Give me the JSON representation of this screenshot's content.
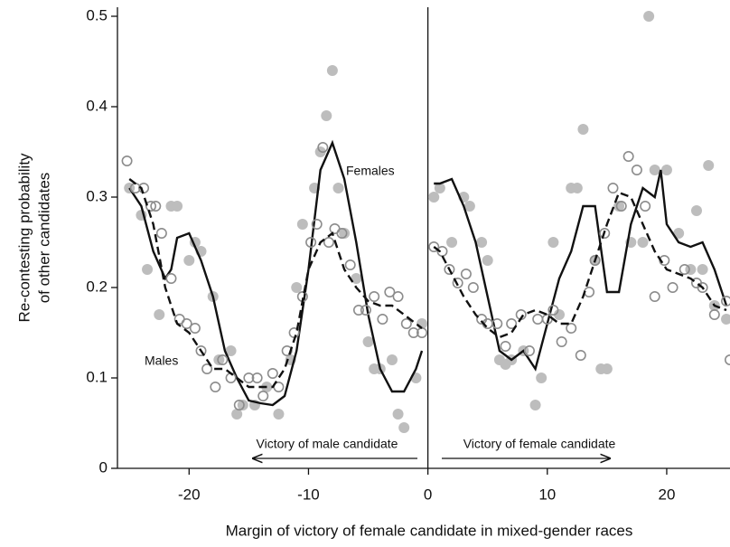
{
  "chart_data": {
    "type": "scatter",
    "xlabel": "Margin of victory of female candidate in mixed-gender races",
    "ylabel": [
      "Re-contesting probability",
      "of other candidates"
    ],
    "annotations": [
      "Victory of male candidate",
      "Victory of female candidate"
    ],
    "xlim": [
      -26,
      25.3
    ],
    "ylim": [
      0,
      0.51
    ],
    "xticks": [
      -20,
      -10,
      0,
      10,
      20
    ],
    "yticks": [
      0,
      0.1,
      0.2,
      0.3,
      0.4,
      0.5
    ],
    "series": [
      {
        "name": "Females",
        "color": "#bdbdbd",
        "marker": "filled",
        "line_style": "solid",
        "x": [
          -25,
          -24,
          -23.5,
          -22.5,
          -21.5,
          -21,
          -20,
          -19.5,
          -19,
          -18,
          -17.5,
          -16.5,
          -16,
          -15.5,
          -14.5,
          -13.5,
          -12.5,
          -11.5,
          -11,
          -10.5,
          -9.5,
          -9,
          -8.5,
          -8,
          -7.5,
          -7,
          -6,
          -5,
          -4.5,
          -4,
          -3,
          -2.5,
          -2,
          -1,
          -0.5,
          0.5,
          1,
          2,
          3,
          3.5,
          4.5,
          5,
          6,
          6.5,
          7,
          8,
          9,
          9.5,
          10.5,
          11,
          12,
          12.5,
          13,
          14,
          14.5,
          15,
          16,
          17,
          18,
          18.5,
          19,
          20,
          21,
          22,
          22.5,
          23,
          23.5,
          24,
          25
        ],
        "values": [
          0.31,
          0.28,
          0.22,
          0.17,
          0.29,
          0.29,
          0.23,
          0.25,
          0.24,
          0.19,
          0.12,
          0.13,
          0.06,
          0.07,
          0.07,
          0.09,
          0.06,
          0.12,
          0.2,
          0.27,
          0.31,
          0.35,
          0.39,
          0.44,
          0.31,
          0.26,
          0.21,
          0.14,
          0.11,
          0.11,
          0.12,
          0.06,
          0.045,
          0.1,
          0.16,
          0.3,
          0.31,
          0.25,
          0.3,
          0.29,
          0.25,
          0.23,
          0.12,
          0.115,
          0.12,
          0.13,
          0.07,
          0.1,
          0.25,
          0.17,
          0.31,
          0.31,
          0.375,
          0.23,
          0.11,
          0.11,
          0.29,
          0.25,
          0.25,
          0.5,
          0.33,
          0.33,
          0.26,
          0.22,
          0.285,
          0.22,
          0.335,
          0.18,
          0.165
        ],
        "smooth_x": [
          -25,
          -24,
          -23,
          -22,
          -21.5,
          -21,
          -20,
          -19,
          -18,
          -17,
          -16,
          -15,
          -14,
          -13,
          -12,
          -11,
          -10,
          -9,
          -8,
          -7,
          -6,
          -5,
          -4,
          -3,
          -2,
          -1,
          -0.5,
          0,
          0.5,
          1,
          2,
          3,
          4,
          5,
          6,
          7,
          8,
          9,
          10,
          11,
          12,
          13,
          14,
          15,
          16,
          17,
          18,
          19,
          19.5,
          20,
          21,
          22,
          23,
          24,
          25
        ],
        "smooth": [
          0.31,
          0.29,
          0.24,
          0.21,
          0.22,
          0.255,
          0.26,
          0.23,
          0.19,
          0.13,
          0.1,
          0.075,
          0.072,
          0.07,
          0.08,
          0.13,
          0.22,
          0.33,
          0.36,
          0.32,
          0.25,
          0.17,
          0.11,
          0.085,
          0.085,
          0.11,
          0.13,
          null,
          0.315,
          0.315,
          0.32,
          0.29,
          0.25,
          0.19,
          0.13,
          0.12,
          0.13,
          0.11,
          0.16,
          0.21,
          0.24,
          0.29,
          0.29,
          0.195,
          0.195,
          0.27,
          0.31,
          0.3,
          0.33,
          0.27,
          0.25,
          0.245,
          0.25,
          0.22,
          0.18
        ]
      },
      {
        "name": "Males",
        "color": "#8c8c8c",
        "marker": "open",
        "line_style": "dashed",
        "x": [
          -25.2,
          -24.5,
          -23.8,
          -23.2,
          -22.8,
          -22.3,
          -21.5,
          -20.8,
          -20.2,
          -19.5,
          -19,
          -18.5,
          -17.8,
          -17.2,
          -16.5,
          -15.8,
          -15,
          -14.3,
          -13.8,
          -13,
          -12.5,
          -11.8,
          -11.2,
          -10.5,
          -9.8,
          -9.3,
          -8.8,
          -8.3,
          -7.8,
          -7.2,
          -6.5,
          -5.8,
          -5.2,
          -4.5,
          -3.8,
          -3.2,
          -2.5,
          -1.8,
          -1.2,
          -0.5,
          0.5,
          1.2,
          1.8,
          2.5,
          3.2,
          3.8,
          4.5,
          5,
          5.8,
          6.5,
          7,
          7.8,
          8.5,
          9.2,
          10,
          10.5,
          11.2,
          12,
          12.8,
          13.5,
          14,
          14.8,
          15.5,
          16.2,
          16.8,
          17.5,
          18.2,
          19,
          19.8,
          20.5,
          21.5,
          22.5,
          23,
          24,
          25,
          25.3
        ],
        "values": [
          0.34,
          0.31,
          0.31,
          0.29,
          0.29,
          0.26,
          0.21,
          0.165,
          0.16,
          0.155,
          0.13,
          0.11,
          0.09,
          0.12,
          0.1,
          0.07,
          0.1,
          0.1,
          0.08,
          0.105,
          0.09,
          0.13,
          0.15,
          0.19,
          0.25,
          0.27,
          0.355,
          0.25,
          0.265,
          0.26,
          0.225,
          0.175,
          0.175,
          0.19,
          0.165,
          0.195,
          0.19,
          0.16,
          0.15,
          0.15,
          0.245,
          0.24,
          0.22,
          0.205,
          0.215,
          0.2,
          0.165,
          0.16,
          0.16,
          0.135,
          0.16,
          0.17,
          0.13,
          0.165,
          0.165,
          0.175,
          0.14,
          0.155,
          0.125,
          0.195,
          0.23,
          0.26,
          0.31,
          0.29,
          0.345,
          0.33,
          0.29,
          0.19,
          0.23,
          0.2,
          0.22,
          0.205,
          0.2,
          0.17,
          0.185,
          0.12
        ],
        "smooth_x": [
          -25,
          -24,
          -23,
          -22,
          -21,
          -20,
          -19,
          -18,
          -17,
          -16,
          -15,
          -14,
          -13,
          -12,
          -11,
          -10,
          -9,
          -8,
          -7,
          -6,
          -5,
          -4,
          -3,
          -2,
          -1,
          -0.5,
          0,
          0.5,
          1,
          2,
          3,
          4,
          5,
          6,
          7,
          8,
          9,
          10,
          11,
          12,
          13,
          14,
          15,
          16,
          17,
          18,
          19,
          20,
          21,
          22,
          23,
          24,
          25
        ],
        "smooth": [
          0.32,
          0.31,
          0.27,
          0.2,
          0.16,
          0.15,
          0.13,
          0.11,
          0.11,
          0.1,
          0.09,
          0.09,
          0.09,
          0.11,
          0.15,
          0.22,
          0.25,
          0.26,
          0.22,
          0.2,
          0.185,
          0.18,
          0.18,
          0.17,
          0.16,
          0.155,
          null,
          0.245,
          0.24,
          0.215,
          0.19,
          0.17,
          0.155,
          0.145,
          0.15,
          0.17,
          0.175,
          0.17,
          0.16,
          0.16,
          0.19,
          0.23,
          0.27,
          0.305,
          0.3,
          0.27,
          0.24,
          0.22,
          0.215,
          0.21,
          0.2,
          0.18,
          0.175
        ]
      }
    ]
  }
}
